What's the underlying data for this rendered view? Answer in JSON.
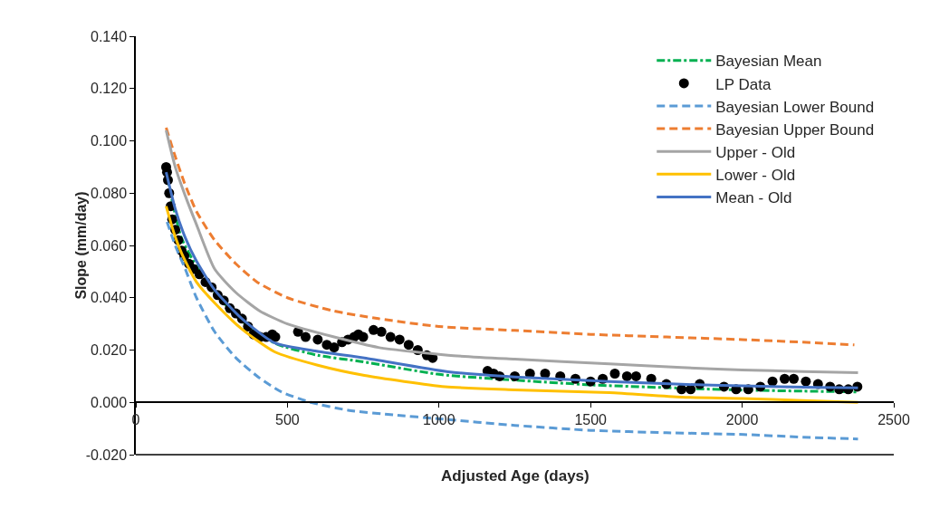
{
  "chart_data": {
    "type": "line",
    "xlabel": "Adjusted Age (days)",
    "ylabel": "Slope (mm/day)",
    "xlim": [
      0,
      2500
    ],
    "xticks": [
      0,
      500,
      1000,
      1500,
      2000,
      2500
    ],
    "ylim": [
      -0.02,
      0.14
    ],
    "yticks": [
      {
        "value": -0.02,
        "label": "-0.020"
      },
      {
        "value": 0,
        "label": "0.000"
      },
      {
        "value": 0.02,
        "label": "0.020"
      },
      {
        "value": 0.04,
        "label": "0.040"
      },
      {
        "value": 0.06,
        "label": "0.060"
      },
      {
        "value": 0.08,
        "label": "0.080"
      },
      {
        "value": 0.1,
        "label": "0.100"
      },
      {
        "value": 0.12,
        "label": "0.120"
      },
      {
        "value": 0.14,
        "label": "0.140"
      }
    ],
    "grid": false,
    "legend": "top right",
    "series": [
      {
        "name": "Bayesian Mean",
        "type": "line",
        "line_style": "dashdot",
        "color": "#00b050",
        "x": [
          100,
          150,
          200,
          260,
          350,
          460,
          600,
          750,
          1000,
          1250,
          1500,
          1750,
          2000,
          2200,
          2380
        ],
        "values": [
          0.088,
          0.063,
          0.052,
          0.042,
          0.031,
          0.0225,
          0.018,
          0.0155,
          0.0107,
          0.0085,
          0.0067,
          0.0056,
          0.0047,
          0.0043,
          0.004
        ]
      },
      {
        "name": "LP Data",
        "type": "scatter",
        "marker": "circle",
        "color": "#000000",
        "x": [
          100,
          103,
          106,
          110,
          115,
          120,
          130,
          140,
          151,
          160,
          175,
          190,
          210,
          230,
          250,
          270,
          290,
          310,
          330,
          350,
          370,
          388,
          410,
          430,
          450,
          460,
          535,
          560,
          600,
          630,
          654,
          680,
          700,
          720,
          734,
          750,
          784,
          810,
          840,
          870,
          900,
          930,
          960,
          979,
          1160,
          1180,
          1200,
          1250,
          1300,
          1350,
          1400,
          1450,
          1500,
          1540,
          1580,
          1620,
          1650,
          1700,
          1750,
          1800,
          1830,
          1860,
          1940,
          1980,
          2020,
          2060,
          2100,
          2140,
          2170,
          2210,
          2250,
          2290,
          2320,
          2350,
          2380
        ],
        "values": [
          0.09,
          0.088,
          0.085,
          0.08,
          0.075,
          0.07,
          0.066,
          0.062,
          0.058,
          0.056,
          0.053,
          0.051,
          0.049,
          0.046,
          0.044,
          0.041,
          0.039,
          0.036,
          0.034,
          0.032,
          0.029,
          0.026,
          0.025,
          0.025,
          0.026,
          0.025,
          0.027,
          0.025,
          0.024,
          0.022,
          0.021,
          0.023,
          0.024,
          0.025,
          0.026,
          0.025,
          0.0277,
          0.027,
          0.025,
          0.024,
          0.022,
          0.02,
          0.018,
          0.017,
          0.012,
          0.011,
          0.01,
          0.01,
          0.011,
          0.011,
          0.01,
          0.009,
          0.008,
          0.009,
          0.011,
          0.01,
          0.01,
          0.009,
          0.007,
          0.005,
          0.005,
          0.007,
          0.006,
          0.005,
          0.005,
          0.006,
          0.008,
          0.009,
          0.009,
          0.008,
          0.007,
          0.006,
          0.005,
          0.005,
          0.006
        ]
      },
      {
        "name": "Bayesian Lower Bound",
        "type": "line",
        "line_style": "dashed",
        "color": "#5b9bd5",
        "x": [
          103,
          130,
          163,
          200,
          260,
          330,
          408,
          480,
          577,
          700,
          850,
          1000,
          1250,
          1500,
          1750,
          2006,
          2200,
          2382
        ],
        "values": [
          0.069,
          0.06,
          0.051,
          0.04,
          0.027,
          0.017,
          0.0093,
          0.004,
          0,
          -0.003,
          -0.0048,
          -0.0063,
          -0.0088,
          -0.0107,
          -0.0116,
          -0.0123,
          -0.0133,
          -0.014
        ]
      },
      {
        "name": "Bayesian Upper Bound",
        "type": "line",
        "line_style": "dashed",
        "color": "#ed7d31",
        "x": [
          100,
          130,
          160,
          200,
          260,
          330,
          400,
          500,
          650,
          800,
          1000,
          1250,
          1500,
          1750,
          2000,
          2200,
          2370
        ],
        "values": [
          0.105,
          0.094,
          0.084,
          0.073,
          0.062,
          0.053,
          0.046,
          0.04,
          0.035,
          0.032,
          0.029,
          0.0275,
          0.026,
          0.025,
          0.024,
          0.023,
          0.022
        ]
      },
      {
        "name": "Upper - Old",
        "type": "line",
        "line_style": "solid",
        "color": "#a5a5a5",
        "x": [
          100,
          130,
          163,
          200,
          260,
          330,
          408,
          500,
          654,
          800,
          1030,
          1250,
          1562,
          1800,
          2000,
          2200,
          2382
        ],
        "values": [
          0.104,
          0.09,
          0.079,
          0.068,
          0.051,
          0.042,
          0.035,
          0.03,
          0.025,
          0.021,
          0.018,
          0.0165,
          0.0147,
          0.0133,
          0.0124,
          0.0118,
          0.0113
        ]
      },
      {
        "name": "Lower - Old",
        "type": "line",
        "line_style": "solid",
        "color": "#ffc000",
        "x": [
          100,
          125,
          151,
          200,
          260,
          350,
          458,
          600,
          754,
          1020,
          1250,
          1562,
          1800,
          2000,
          2200,
          2382
        ],
        "values": [
          0.075,
          0.065,
          0.057,
          0.046,
          0.038,
          0.028,
          0.0193,
          0.0142,
          0.0103,
          0.006,
          0.0048,
          0.0037,
          0.002,
          0.0015,
          0.0007,
          0
        ]
      },
      {
        "name": "Mean - Old",
        "type": "line",
        "line_style": "solid",
        "color": "#4472c4",
        "x": [
          100,
          130,
          163,
          200,
          260,
          350,
          458,
          600,
          754,
          1030,
          1250,
          1562,
          1800,
          2000,
          2251,
          2382
        ],
        "values": [
          0.088,
          0.074,
          0.063,
          0.054,
          0.043,
          0.032,
          0.0227,
          0.0195,
          0.017,
          0.0117,
          0.0097,
          0.008,
          0.0069,
          0.0063,
          0.0057,
          0.0055
        ]
      }
    ]
  }
}
